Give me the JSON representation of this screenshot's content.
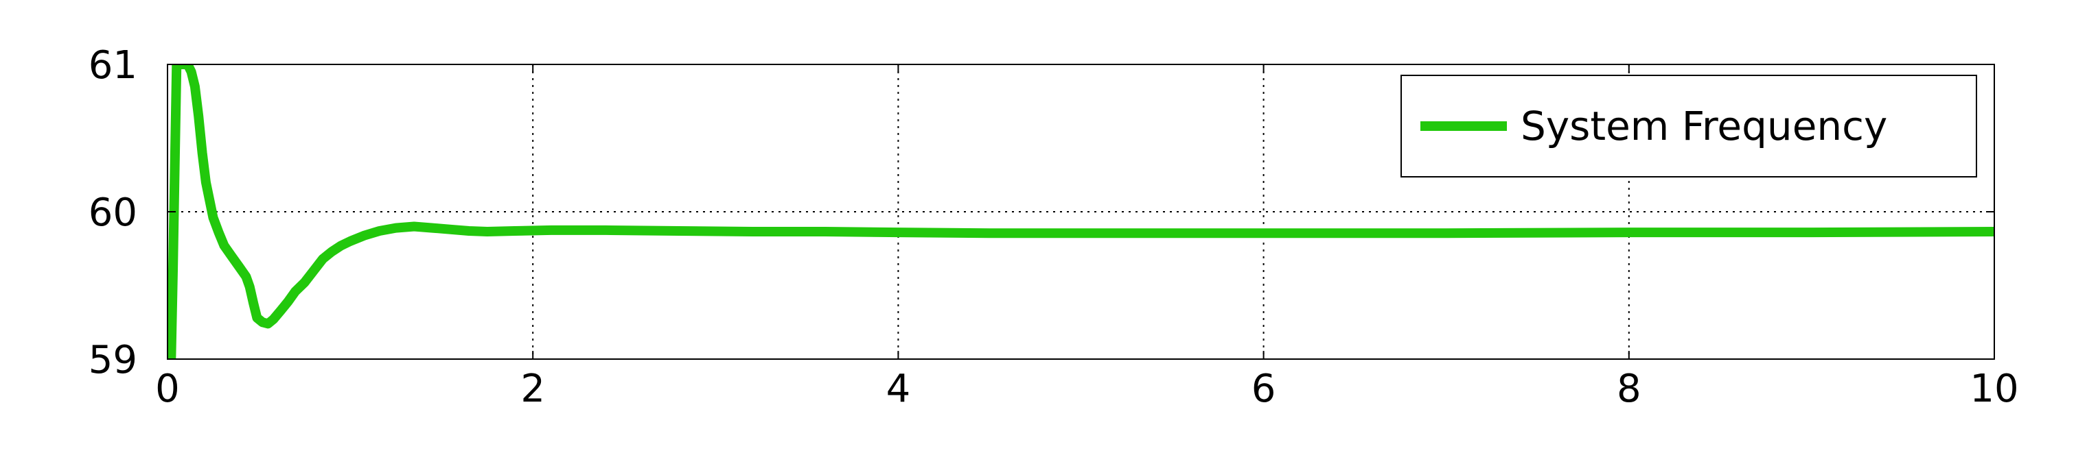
{
  "chart_data": {
    "type": "line",
    "title": "",
    "xlabel": "",
    "ylabel": "",
    "xlim": [
      0,
      10
    ],
    "ylim": [
      59,
      61
    ],
    "xticks": [
      "0",
      "2",
      "4",
      "6",
      "8",
      "10"
    ],
    "yticks": [
      "59",
      "60",
      "61"
    ],
    "grid": true,
    "legend_position": "top-right",
    "series": [
      {
        "name": "System Frequency",
        "color": "#22c80c",
        "x": [
          0.02,
          0.03,
          0.04,
          0.05,
          0.06,
          0.07,
          0.11,
          0.13,
          0.15,
          0.17,
          0.19,
          0.21,
          0.23,
          0.25,
          0.28,
          0.31,
          0.35,
          0.39,
          0.43,
          0.45,
          0.47,
          0.49,
          0.52,
          0.55,
          0.58,
          0.62,
          0.66,
          0.7,
          0.75,
          0.8,
          0.85,
          0.9,
          0.95,
          1.0,
          1.08,
          1.16,
          1.25,
          1.35,
          1.45,
          1.55,
          1.65,
          1.75,
          1.9,
          2.1,
          2.4,
          2.8,
          3.2,
          3.6,
          4.0,
          4.5,
          5.0,
          6.0,
          7.0,
          8.0,
          9.0,
          10.0
        ],
        "y": [
          59.0,
          59.6,
          60.3,
          61.0,
          61.0,
          61.0,
          61.0,
          60.95,
          60.85,
          60.65,
          60.4,
          60.2,
          60.08,
          59.96,
          59.86,
          59.77,
          59.7,
          59.63,
          59.56,
          59.49,
          59.38,
          59.28,
          59.25,
          59.24,
          59.27,
          59.33,
          59.39,
          59.46,
          59.52,
          59.6,
          59.68,
          59.73,
          59.77,
          59.8,
          59.84,
          59.87,
          59.89,
          59.9,
          59.89,
          59.88,
          59.87,
          59.865,
          59.87,
          59.875,
          59.875,
          59.87,
          59.865,
          59.865,
          59.86,
          59.855,
          59.855,
          59.855,
          59.855,
          59.86,
          59.86,
          59.865
        ]
      }
    ]
  }
}
